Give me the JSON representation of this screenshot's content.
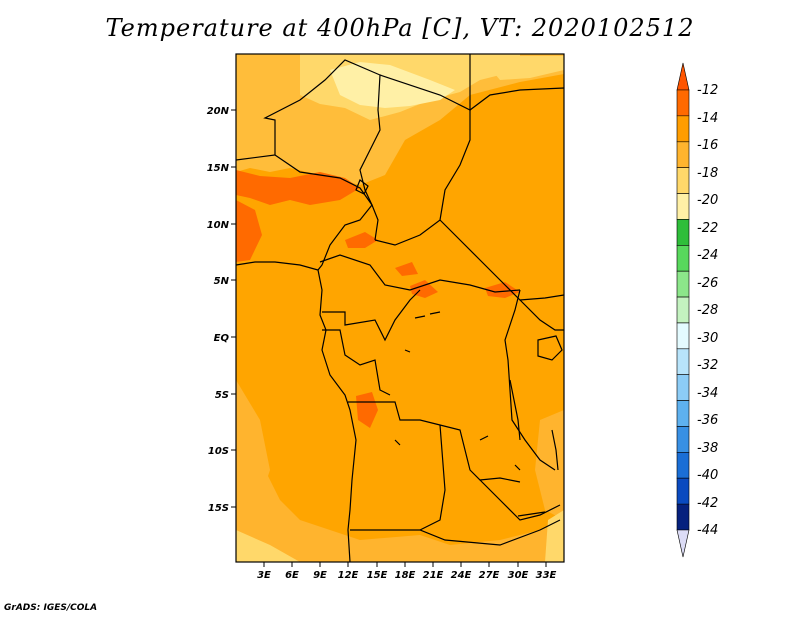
{
  "title": "Temperature at 400hPa [C], VT: 2020102512",
  "credit": "GrADS: IGES/COLA",
  "lat_ticks": [
    "20N",
    "15N",
    "10N",
    "5N",
    "EQ",
    "5S",
    "10S",
    "15S"
  ],
  "lon_ticks": [
    "3E",
    "6E",
    "9E",
    "12E",
    "15E",
    "18E",
    "21E",
    "24E",
    "27E",
    "30E",
    "33E"
  ],
  "colorbar": {
    "labels": [
      "-12",
      "-14",
      "-16",
      "-18",
      "-20",
      "-22",
      "-24",
      "-26",
      "-28",
      "-30",
      "-32",
      "-34",
      "-36",
      "-38",
      "-40",
      "-42",
      "-44"
    ],
    "colors": [
      "#ff5500",
      "#ff6a00",
      "#ff9d00",
      "#ffb42e",
      "#ffd86a",
      "#fff0a6",
      "#2fbe3a",
      "#58d85c",
      "#8ce68a",
      "#c4f2c0",
      "#e4fbff",
      "#b8e4fb",
      "#8cccf6",
      "#5eb1ef",
      "#3890e4",
      "#1a6ed6",
      "#0a4ac0",
      "#06217e",
      "#dcdcf6"
    ]
  },
  "map": {
    "background_color": "#ffa500",
    "region": "Central Africa",
    "lon_range": [
      0,
      34
    ],
    "lat_range": [
      -20,
      24
    ]
  }
}
